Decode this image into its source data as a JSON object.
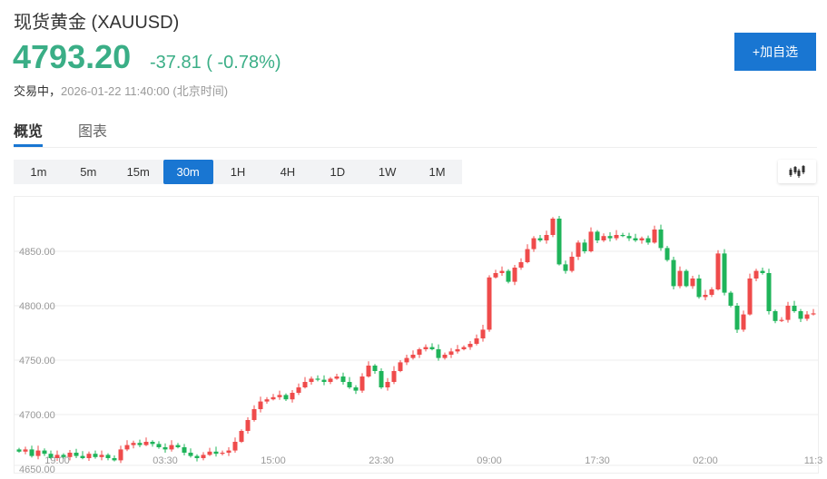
{
  "header": {
    "title": "现货黄金 (XAUUSD)",
    "price": "4793.20",
    "change": "-37.81 ( -0.78%)",
    "status_label": "交易中，",
    "timestamp": "2026-01-22 11:40:00 (北京时间)",
    "add_button": "+加自选"
  },
  "tabs": [
    {
      "label": "概览",
      "active": true
    },
    {
      "label": "图表",
      "active": false
    }
  ],
  "intervals": [
    {
      "label": "1m"
    },
    {
      "label": "5m"
    },
    {
      "label": "15m"
    },
    {
      "label": "30m",
      "active": true
    },
    {
      "label": "1H"
    },
    {
      "label": "4H"
    },
    {
      "label": "1D"
    },
    {
      "label": "1W"
    },
    {
      "label": "1M"
    }
  ],
  "colors": {
    "up": "#ef4b4b",
    "down": "#1fb45a",
    "accent": "#1976d2",
    "price": "#3aae86"
  },
  "chart_data": {
    "type": "candlestick",
    "interval": "30m",
    "y_ticks": [
      "4650.00",
      "4700.00",
      "4750.00",
      "4800.00",
      "4850.00"
    ],
    "ylim": [
      4650,
      4900
    ],
    "x_ticks": [
      {
        "label": "19:00",
        "index": 6
      },
      {
        "label": "03:30",
        "index": 23
      },
      {
        "label": "15:00",
        "index": 40
      },
      {
        "label": "23:30",
        "index": 57
      },
      {
        "label": "09:00",
        "index": 74
      },
      {
        "label": "17:30",
        "index": 91
      },
      {
        "label": "02:00",
        "index": 108
      },
      {
        "label": "11:3",
        "index": 125
      }
    ],
    "open_rule": "open = previous close",
    "close": [
      4666,
      4668,
      4662,
      4667,
      4664,
      4660,
      4663,
      4661,
      4665,
      4662,
      4660,
      4664,
      4661,
      4663,
      4660,
      4658,
      4668,
      4672,
      4674,
      4672,
      4675,
      4673,
      4670,
      4668,
      4672,
      4670,
      4665,
      4662,
      4660,
      4663,
      4666,
      4664,
      4665,
      4667,
      4675,
      4685,
      4695,
      4705,
      4712,
      4714,
      4716,
      4718,
      4714,
      4720,
      4725,
      4730,
      4733,
      4732,
      4730,
      4733,
      4735,
      4730,
      4725,
      4722,
      4735,
      4745,
      4740,
      4725,
      4730,
      4740,
      4748,
      4752,
      4755,
      4760,
      4762,
      4760,
      4752,
      4755,
      4758,
      4760,
      4762,
      4765,
      4770,
      4778,
      4826,
      4830,
      4832,
      4822,
      4835,
      4840,
      4852,
      4862,
      4860,
      4865,
      4880,
      4838,
      4832,
      4845,
      4858,
      4850,
      4868,
      4860,
      4864,
      4862,
      4865,
      4864,
      4862,
      4860,
      4862,
      4858,
      4870,
      4853,
      4842,
      4818,
      4832,
      4818,
      4825,
      4808,
      4810,
      4815,
      4848,
      4812,
      4800,
      4778,
      4792,
      4825,
      4832,
      4830,
      4795,
      4786,
      4787,
      4800,
      4795,
      4788,
      4792,
      4793
    ]
  }
}
